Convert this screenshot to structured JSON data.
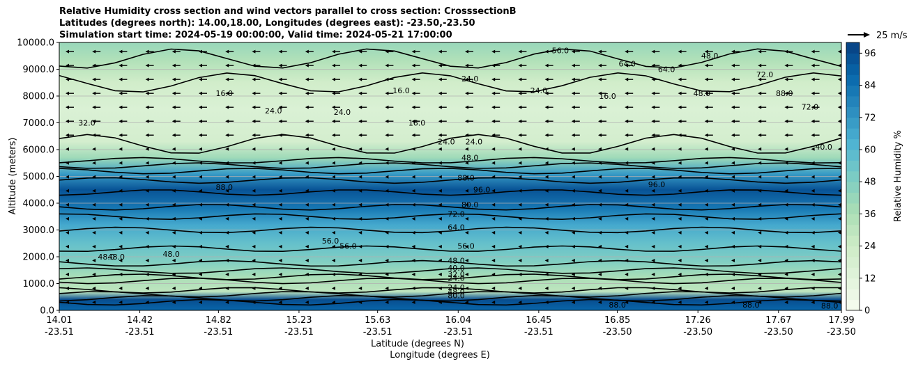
{
  "header": {
    "title_line1": "Relative Humidity cross section and wind vectors parallel to cross section: CrosssectionB",
    "title_line2": "Latitudes (degrees north): 14.00,18.00, Longitudes (degrees east): -23.50,-23.50",
    "title_line3": "Simulation start time: 2024-05-19 00:00:00, Valid time: 2024-05-21 17:00:00"
  },
  "chart_data": {
    "type": "heatmap",
    "title": "Relative Humidity cross section and wind vectors parallel to cross section: CrosssectionB",
    "xlabel_line1": "Latitude (degrees N)",
    "xlabel_line2": "Longitude (degrees E)",
    "ylabel": "Altitude (meters)",
    "ylim": [
      0,
      10000
    ],
    "y_ticks": [
      "0.0",
      "1000.0",
      "2000.0",
      "3000.0",
      "4000.0",
      "5000.0",
      "6000.0",
      "7000.0",
      "8000.0",
      "9000.0",
      "10000.0"
    ],
    "x_ticks": [
      {
        "lat": "14.01",
        "lon": "-23.51"
      },
      {
        "lat": "14.42",
        "lon": "-23.51"
      },
      {
        "lat": "14.82",
        "lon": "-23.51"
      },
      {
        "lat": "15.23",
        "lon": "-23.51"
      },
      {
        "lat": "15.63",
        "lon": "-23.51"
      },
      {
        "lat": "16.04",
        "lon": "-23.51"
      },
      {
        "lat": "16.45",
        "lon": "-23.51"
      },
      {
        "lat": "16.85",
        "lon": "-23.50"
      },
      {
        "lat": "17.26",
        "lon": "-23.50"
      },
      {
        "lat": "17.67",
        "lon": "-23.50"
      },
      {
        "lat": "17.99",
        "lon": "-23.50"
      }
    ],
    "xlim": [
      14.01,
      17.99
    ],
    "colorbar": {
      "label": "Relative Humidity %",
      "range": [
        0,
        100
      ],
      "ticks": [
        "0",
        "12",
        "24",
        "36",
        "48",
        "60",
        "72",
        "84",
        "96"
      ],
      "colormap": "GnBu",
      "colors": [
        "#f7fcf0",
        "#e0f3db",
        "#ccebc5",
        "#a8ddb5",
        "#7bccc4",
        "#4eb3d3",
        "#2b8cbe",
        "#0868ac",
        "#084081"
      ]
    },
    "wind_key": {
      "label": "25 m/s"
    },
    "rh_profile": [
      {
        "alt": 0,
        "rh": 88
      },
      {
        "alt": 400,
        "rh": 96
      },
      {
        "alt": 700,
        "rh": 30
      },
      {
        "alt": 1200,
        "rh": 36
      },
      {
        "alt": 1800,
        "rh": 48
      },
      {
        "alt": 2500,
        "rh": 56
      },
      {
        "alt": 3200,
        "rh": 66
      },
      {
        "alt": 3800,
        "rh": 82
      },
      {
        "alt": 4500,
        "rh": 94
      },
      {
        "alt": 5100,
        "rh": 70
      },
      {
        "alt": 5700,
        "rh": 40
      },
      {
        "alt": 6300,
        "rh": 20
      },
      {
        "alt": 7500,
        "rh": 16
      },
      {
        "alt": 8500,
        "rh": 22
      },
      {
        "alt": 9300,
        "rh": 34
      },
      {
        "alt": 10000,
        "rh": 42
      }
    ],
    "contour_labels": [
      {
        "lat": 14.15,
        "alt": 6900,
        "text": "32.0"
      },
      {
        "lat": 15.1,
        "alt": 7350,
        "text": "24.0"
      },
      {
        "lat": 15.45,
        "alt": 7300,
        "text": "24.0"
      },
      {
        "lat": 14.85,
        "alt": 8000,
        "text": "16.0"
      },
      {
        "lat": 15.75,
        "alt": 8100,
        "text": "16.0"
      },
      {
        "lat": 15.83,
        "alt": 6900,
        "text": "16.0"
      },
      {
        "lat": 16.1,
        "alt": 8550,
        "text": "24.0"
      },
      {
        "lat": 16.45,
        "alt": 8100,
        "text": "24.0"
      },
      {
        "lat": 16.8,
        "alt": 7900,
        "text": "16.0"
      },
      {
        "lat": 15.98,
        "alt": 6200,
        "text": "24.0"
      },
      {
        "lat": 16.12,
        "alt": 6200,
        "text": "24.0"
      },
      {
        "lat": 16.1,
        "alt": 5600,
        "text": "48.0"
      },
      {
        "lat": 16.08,
        "alt": 4850,
        "text": "88.0"
      },
      {
        "lat": 16.16,
        "alt": 4400,
        "text": "96.0"
      },
      {
        "lat": 17.05,
        "alt": 4600,
        "text": "96.0"
      },
      {
        "lat": 14.85,
        "alt": 4500,
        "text": "88.0"
      },
      {
        "lat": 16.1,
        "alt": 3850,
        "text": "80.0"
      },
      {
        "lat": 16.03,
        "alt": 3500,
        "text": "72.0"
      },
      {
        "lat": 16.03,
        "alt": 3000,
        "text": "64.0"
      },
      {
        "lat": 15.39,
        "alt": 2500,
        "text": "56.0"
      },
      {
        "lat": 15.48,
        "alt": 2300,
        "text": "56.0"
      },
      {
        "lat": 16.08,
        "alt": 2300,
        "text": "56.0"
      },
      {
        "lat": 16.03,
        "alt": 1750,
        "text": "48.0"
      },
      {
        "lat": 16.03,
        "alt": 1480,
        "text": "40.0"
      },
      {
        "lat": 16.03,
        "alt": 1250,
        "text": "32.0"
      },
      {
        "lat": 16.03,
        "alt": 1100,
        "text": "24.0"
      },
      {
        "lat": 16.03,
        "alt": 750,
        "text": "24.0"
      },
      {
        "lat": 16.03,
        "alt": 600,
        "text": "48.0"
      },
      {
        "lat": 16.03,
        "alt": 450,
        "text": "80.0"
      },
      {
        "lat": 14.25,
        "alt": 1900,
        "text": "48.0"
      },
      {
        "lat": 14.3,
        "alt": 1900,
        "text": "48.0"
      },
      {
        "lat": 14.58,
        "alt": 2000,
        "text": "48.0"
      },
      {
        "lat": 16.85,
        "alt": 100,
        "text": "88.0"
      },
      {
        "lat": 17.53,
        "alt": 100,
        "text": "88.0"
      },
      {
        "lat": 17.93,
        "alt": 60,
        "text": "88.0"
      },
      {
        "lat": 17.32,
        "alt": 9400,
        "text": "48.0"
      },
      {
        "lat": 16.56,
        "alt": 9600,
        "text": "56.0"
      },
      {
        "lat": 16.9,
        "alt": 9100,
        "text": "64.0"
      },
      {
        "lat": 17.6,
        "alt": 8700,
        "text": "72.0"
      },
      {
        "lat": 17.7,
        "alt": 8000,
        "text": "88.0"
      },
      {
        "lat": 17.83,
        "alt": 7500,
        "text": "72.0"
      },
      {
        "lat": 17.9,
        "alt": 6000,
        "text": "40.0"
      },
      {
        "lat": 17.1,
        "alt": 8900,
        "text": "64.0"
      },
      {
        "lat": 17.28,
        "alt": 8000,
        "text": "48.0"
      }
    ]
  }
}
